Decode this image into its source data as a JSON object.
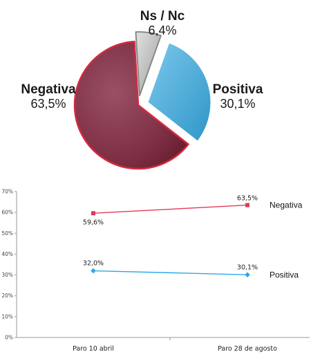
{
  "chart_data": [
    {
      "type": "pie",
      "slices": [
        {
          "label": "Ns / Nc",
          "value_text": "6,4%",
          "value": 6.4,
          "color": "#b8b8b8"
        },
        {
          "label": "Positiva",
          "value_text": "30,1%",
          "value": 30.1,
          "color": "#45a9d8"
        },
        {
          "label": "Negativa",
          "value_text": "63,5%",
          "value": 63.5,
          "color": "#8a3548"
        }
      ],
      "exploded": [
        "Ns / Nc",
        "Positiva"
      ]
    },
    {
      "type": "line",
      "categories": [
        "Paro 10 abril",
        "Paro 28 de agosto"
      ],
      "ylim": [
        0,
        70
      ],
      "yticks": [
        "0%",
        "10%",
        "20%",
        "30%",
        "40%",
        "50%",
        "60%",
        "70%"
      ],
      "grid": false,
      "series": [
        {
          "name": "Negativa",
          "values": [
            59.6,
            63.5
          ],
          "labels": [
            "59,6%",
            "63,5%"
          ],
          "color": "#e03a5a",
          "marker": "square"
        },
        {
          "name": "Positiva",
          "values": [
            32.0,
            30.1
          ],
          "labels": [
            "32,0%",
            "30,1%"
          ],
          "color": "#2ea8e6",
          "marker": "diamond"
        }
      ]
    }
  ]
}
